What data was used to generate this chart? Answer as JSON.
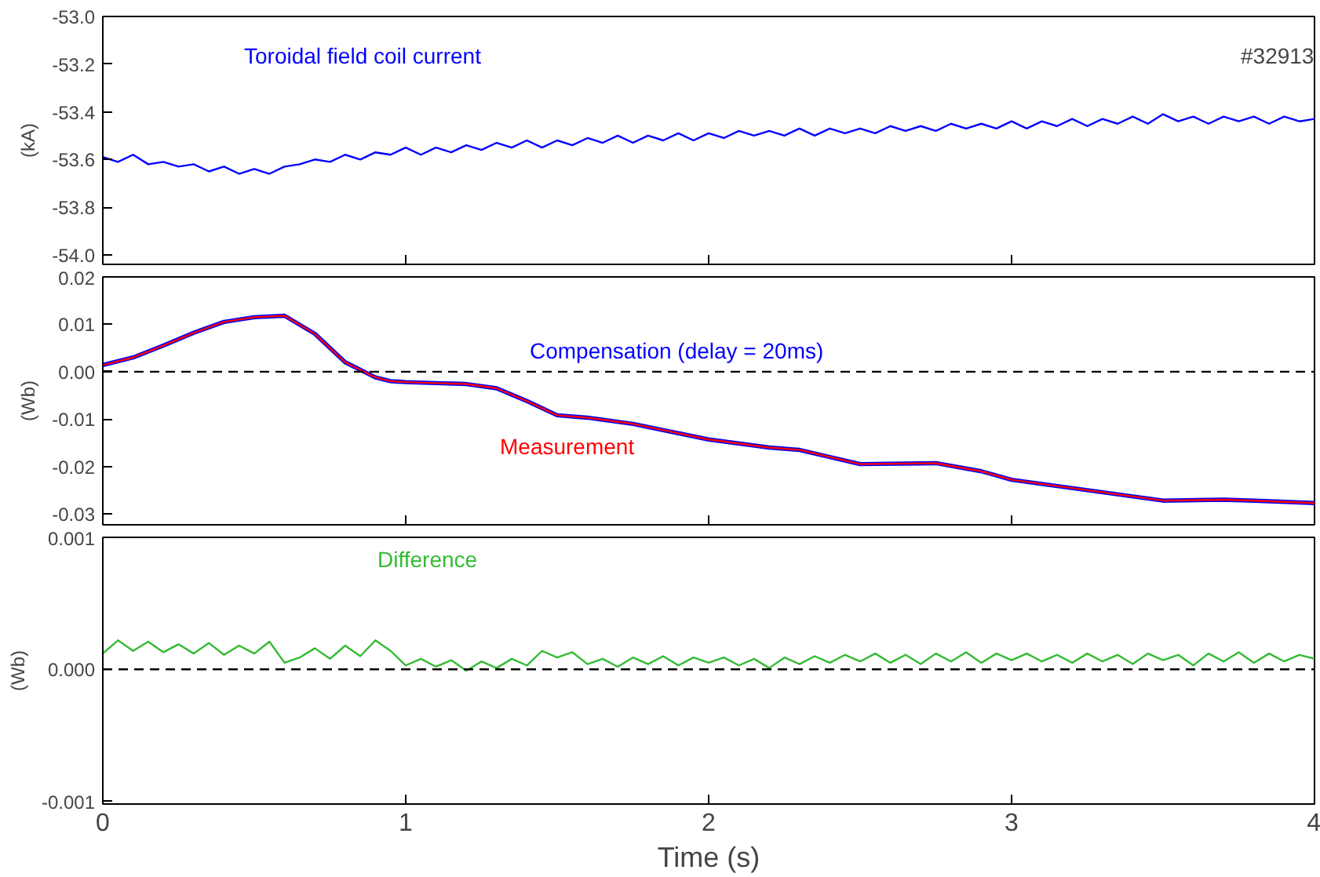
{
  "chart_data": [
    {
      "type": "line",
      "ylabel": "(kA)",
      "annotations": [
        "#32913"
      ],
      "xlim": [
        0,
        4
      ],
      "xticks": [
        0,
        1,
        2,
        3,
        4
      ],
      "ylim": [
        -54.04,
        -53.0
      ],
      "yticks": [
        {
          "value": -54.0,
          "label": "-54.0"
        },
        {
          "value": -53.8,
          "label": "-53.8"
        },
        {
          "value": -53.6,
          "label": "-53.6"
        },
        {
          "value": -53.4,
          "label": "-53.4"
        },
        {
          "value": -53.2,
          "label": "-53.2"
        },
        {
          "value": -53.0,
          "label": "-53.0"
        }
      ],
      "tick_labels": "y",
      "grid": false,
      "x": [
        0,
        0.05,
        0.1,
        0.15,
        0.2,
        0.25,
        0.3,
        0.35,
        0.4,
        0.45,
        0.5,
        0.55,
        0.6,
        0.65,
        0.7,
        0.75,
        0.8,
        0.85,
        0.9,
        0.95,
        1.0,
        1.05,
        1.1,
        1.15,
        1.2,
        1.25,
        1.3,
        1.35,
        1.4,
        1.45,
        1.5,
        1.55,
        1.6,
        1.65,
        1.7,
        1.75,
        1.8,
        1.85,
        1.9,
        1.95,
        2.0,
        2.05,
        2.1,
        2.15,
        2.2,
        2.25,
        2.3,
        2.35,
        2.4,
        2.45,
        2.5,
        2.55,
        2.6,
        2.65,
        2.7,
        2.75,
        2.8,
        2.85,
        2.9,
        2.95,
        3.0,
        3.05,
        3.1,
        3.15,
        3.2,
        3.25,
        3.3,
        3.35,
        3.4,
        3.45,
        3.5,
        3.55,
        3.6,
        3.65,
        3.7,
        3.75,
        3.8,
        3.85,
        3.9,
        3.95,
        4.0
      ],
      "series": [
        {
          "name": "Toroidal field coil current",
          "color": "#0000ff",
          "values": [
            -53.59,
            -53.61,
            -53.58,
            -53.62,
            -53.61,
            -53.63,
            -53.62,
            -53.65,
            -53.63,
            -53.66,
            -53.64,
            -53.66,
            -53.63,
            -53.62,
            -53.6,
            -53.61,
            -53.58,
            -53.6,
            -53.57,
            -53.58,
            -53.55,
            -53.58,
            -53.55,
            -53.57,
            -53.54,
            -53.56,
            -53.53,
            -53.55,
            -53.52,
            -53.55,
            -53.52,
            -53.54,
            -53.51,
            -53.53,
            -53.5,
            -53.53,
            -53.5,
            -53.52,
            -53.49,
            -53.52,
            -53.49,
            -53.51,
            -53.48,
            -53.5,
            -53.48,
            -53.5,
            -53.47,
            -53.5,
            -53.47,
            -53.49,
            -53.47,
            -53.49,
            -53.46,
            -53.48,
            -53.46,
            -53.48,
            -53.45,
            -53.47,
            -53.45,
            -53.47,
            -53.44,
            -53.47,
            -53.44,
            -53.46,
            -53.43,
            -53.46,
            -53.43,
            -53.45,
            -53.42,
            -53.45,
            -53.41,
            -53.44,
            -53.42,
            -53.45,
            -53.42,
            -53.44,
            -53.42,
            -53.45,
            -53.42,
            -53.44,
            -53.43
          ]
        }
      ]
    },
    {
      "type": "line",
      "ylabel": "(Wb)",
      "xlim": [
        0,
        4
      ],
      "xticks": [
        0,
        1,
        2,
        3,
        4
      ],
      "ylim": [
        -0.0323,
        0.02
      ],
      "yticks": [
        {
          "value": -0.03,
          "label": "-0.03"
        },
        {
          "value": -0.02,
          "label": "-0.02"
        },
        {
          "value": -0.01,
          "label": "-0.01"
        },
        {
          "value": 0,
          "label": "0.00"
        },
        {
          "value": 0.01,
          "label": "0.01"
        },
        {
          "value": 0.02,
          "label": "0.02"
        }
      ],
      "tick_labels": "y",
      "grid": false,
      "ref_lines": [
        {
          "axis": "y",
          "value": 0,
          "color": "#000000",
          "line_style": "dashed"
        }
      ],
      "x": [
        0,
        0.1,
        0.2,
        0.3,
        0.4,
        0.5,
        0.6,
        0.7,
        0.8,
        0.9,
        0.95,
        1.0,
        1.1,
        1.2,
        1.3,
        1.4,
        1.5,
        1.6,
        1.75,
        2.0,
        2.2,
        2.3,
        2.5,
        2.75,
        2.9,
        3.0,
        3.25,
        3.5,
        3.7,
        3.8,
        4.0
      ],
      "series": [
        {
          "name": "Compensation (delay = 20ms)",
          "color": "#0000ff",
          "values": [
            0.0014,
            0.003,
            0.0055,
            0.0082,
            0.0105,
            0.0115,
            0.0118,
            0.008,
            0.002,
            -0.0012,
            -0.002,
            -0.0022,
            -0.0024,
            -0.0026,
            -0.0035,
            -0.0062,
            -0.0092,
            -0.0097,
            -0.011,
            -0.0143,
            -0.016,
            -0.0165,
            -0.0195,
            -0.0193,
            -0.021,
            -0.0228,
            -0.025,
            -0.0272,
            -0.027,
            -0.0272,
            -0.0277
          ]
        },
        {
          "name": "Measurement",
          "color": "#ff0000",
          "values": [
            0.0014,
            0.003,
            0.0055,
            0.0082,
            0.0105,
            0.0115,
            0.0118,
            0.008,
            0.002,
            -0.0012,
            -0.002,
            -0.0022,
            -0.0024,
            -0.0026,
            -0.0035,
            -0.0062,
            -0.0092,
            -0.0097,
            -0.011,
            -0.0143,
            -0.016,
            -0.0165,
            -0.0195,
            -0.0193,
            -0.021,
            -0.0228,
            -0.025,
            -0.0272,
            -0.027,
            -0.0272,
            -0.0277
          ]
        }
      ]
    },
    {
      "type": "line",
      "ylabel": "(Wb)",
      "xlabel": "Time (s)",
      "xlim": [
        0,
        4
      ],
      "xticks": [
        0,
        1,
        2,
        3,
        4
      ],
      "ylim": [
        -0.00102,
        0.001
      ],
      "yticks": [
        {
          "value": -0.001,
          "label": "-0.001"
        },
        {
          "value": 0,
          "label": "0.000"
        },
        {
          "value": 0.001,
          "label": "0.001"
        }
      ],
      "grid": false,
      "ref_lines": [
        {
          "axis": "y",
          "value": 0,
          "color": "#000000",
          "line_style": "dashed"
        }
      ],
      "x": [
        0,
        0.05,
        0.1,
        0.15,
        0.2,
        0.25,
        0.3,
        0.35,
        0.4,
        0.45,
        0.5,
        0.55,
        0.6,
        0.65,
        0.7,
        0.75,
        0.8,
        0.85,
        0.9,
        0.95,
        1.0,
        1.05,
        1.1,
        1.15,
        1.2,
        1.25,
        1.3,
        1.35,
        1.4,
        1.45,
        1.5,
        1.55,
        1.6,
        1.65,
        1.7,
        1.75,
        1.8,
        1.85,
        1.9,
        1.95,
        2.0,
        2.05,
        2.1,
        2.15,
        2.2,
        2.25,
        2.3,
        2.35,
        2.4,
        2.45,
        2.5,
        2.55,
        2.6,
        2.65,
        2.7,
        2.75,
        2.8,
        2.85,
        2.9,
        2.95,
        3.0,
        3.05,
        3.1,
        3.15,
        3.2,
        3.25,
        3.3,
        3.35,
        3.4,
        3.45,
        3.5,
        3.55,
        3.6,
        3.65,
        3.7,
        3.75,
        3.8,
        3.85,
        3.9,
        3.95,
        4.0
      ],
      "series": [
        {
          "name": "Difference",
          "color": "#33bb33",
          "values": [
            0.00012,
            0.00022,
            0.00014,
            0.00021,
            0.00013,
            0.00019,
            0.00012,
            0.0002,
            0.00011,
            0.00018,
            0.00012,
            0.00021,
            5e-05,
            9e-05,
            0.00016,
            8e-05,
            0.00018,
            0.0001,
            0.00022,
            0.00014,
            3e-05,
            8e-05,
            2e-05,
            7e-05,
            -1e-05,
            6e-05,
            1e-05,
            8e-05,
            3e-05,
            0.00014,
            9e-05,
            0.00013,
            4e-05,
            8e-05,
            2e-05,
            9e-05,
            4e-05,
            0.0001,
            3e-05,
            9e-05,
            5e-05,
            9e-05,
            3e-05,
            8e-05,
            1e-05,
            9e-05,
            4e-05,
            0.0001,
            5e-05,
            0.00011,
            6e-05,
            0.00012,
            5e-05,
            0.00011,
            4e-05,
            0.00012,
            6e-05,
            0.00013,
            5e-05,
            0.00012,
            7e-05,
            0.00012,
            6e-05,
            0.00011,
            5e-05,
            0.00012,
            6e-05,
            0.00011,
            4e-05,
            0.00012,
            7e-05,
            0.00011,
            3e-05,
            0.00012,
            6e-05,
            0.00013,
            5e-05,
            0.00012,
            6e-05,
            0.00011,
            8e-05
          ]
        }
      ]
    }
  ]
}
